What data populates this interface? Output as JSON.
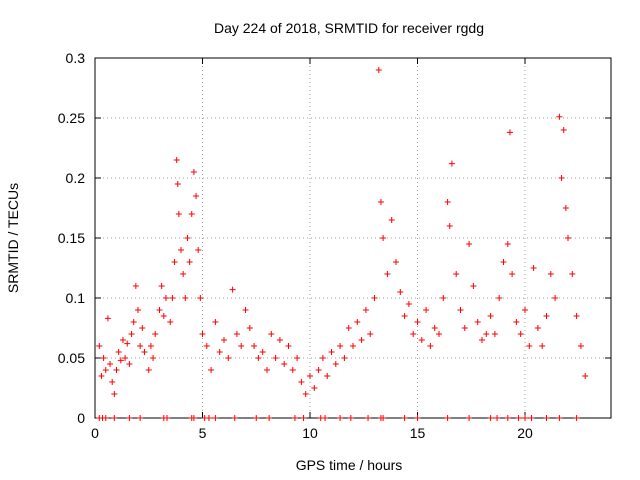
{
  "chart_data": {
    "type": "scatter",
    "title": "Day 224 of 2018, SRMTID for receiver rgdg",
    "xlabel": "GPS time / hours",
    "ylabel": "SRMTID / TECUs",
    "xlim": [
      0,
      24
    ],
    "ylim": [
      0,
      0.3
    ],
    "xticks": [
      0,
      5,
      10,
      15,
      20
    ],
    "yticks": [
      0,
      0.05,
      0.1,
      0.15,
      0.2,
      0.25,
      0.3
    ],
    "xtick_labels": [
      "0",
      "5",
      "10",
      "15",
      "20"
    ],
    "ytick_labels": [
      "0",
      "0.05",
      "0.1",
      "0.15",
      "0.2",
      "0.25",
      "0.3"
    ],
    "grid": true,
    "marker": "+",
    "color": "#ff0000",
    "series": [
      {
        "name": "SRMTID",
        "points": [
          [
            0.2,
            0.06
          ],
          [
            0.3,
            0.035
          ],
          [
            0.4,
            0.05
          ],
          [
            0.5,
            0.04
          ],
          [
            0.6,
            0.083
          ],
          [
            0.7,
            0.045
          ],
          [
            0.8,
            0.03
          ],
          [
            0.9,
            0.02
          ],
          [
            1.0,
            0.04
          ],
          [
            1.1,
            0.055
          ],
          [
            1.2,
            0.048
          ],
          [
            1.3,
            0.065
          ],
          [
            1.4,
            0.05
          ],
          [
            1.5,
            0.062
          ],
          [
            1.6,
            0.045
          ],
          [
            1.7,
            0.07
          ],
          [
            1.8,
            0.08
          ],
          [
            1.9,
            0.11
          ],
          [
            2.0,
            0.09
          ],
          [
            2.1,
            0.06
          ],
          [
            2.2,
            0.075
          ],
          [
            2.3,
            0.055
          ],
          [
            2.5,
            0.04
          ],
          [
            2.6,
            0.06
          ],
          [
            2.7,
            0.05
          ],
          [
            2.8,
            0.07
          ],
          [
            3.0,
            0.09
          ],
          [
            3.1,
            0.11
          ],
          [
            3.2,
            0.085
          ],
          [
            3.3,
            0.1
          ],
          [
            3.5,
            0.08
          ],
          [
            3.6,
            0.1
          ],
          [
            3.7,
            0.13
          ],
          [
            3.8,
            0.215
          ],
          [
            3.85,
            0.195
          ],
          [
            3.9,
            0.17
          ],
          [
            4.0,
            0.14
          ],
          [
            4.1,
            0.12
          ],
          [
            4.2,
            0.1
          ],
          [
            4.3,
            0.15
          ],
          [
            4.4,
            0.13
          ],
          [
            4.5,
            0.17
          ],
          [
            4.6,
            0.205
          ],
          [
            4.7,
            0.185
          ],
          [
            4.8,
            0.14
          ],
          [
            4.9,
            0.1
          ],
          [
            5.0,
            0.07
          ],
          [
            5.2,
            0.06
          ],
          [
            5.4,
            0.04
          ],
          [
            5.6,
            0.08
          ],
          [
            5.8,
            0.055
          ],
          [
            6.0,
            0.065
          ],
          [
            6.2,
            0.05
          ],
          [
            6.4,
            0.107
          ],
          [
            6.6,
            0.07
          ],
          [
            6.8,
            0.06
          ],
          [
            7.0,
            0.09
          ],
          [
            7.2,
            0.075
          ],
          [
            7.4,
            0.06
          ],
          [
            7.6,
            0.05
          ],
          [
            7.8,
            0.055
          ],
          [
            8.0,
            0.04
          ],
          [
            8.2,
            0.07
          ],
          [
            8.4,
            0.05
          ],
          [
            8.6,
            0.065
          ],
          [
            8.8,
            0.045
          ],
          [
            9.0,
            0.06
          ],
          [
            9.2,
            0.04
          ],
          [
            9.4,
            0.05
          ],
          [
            9.6,
            0.03
          ],
          [
            9.8,
            0.02
          ],
          [
            10.0,
            0.035
          ],
          [
            10.2,
            0.025
          ],
          [
            10.4,
            0.04
          ],
          [
            10.6,
            0.05
          ],
          [
            10.8,
            0.035
          ],
          [
            11.0,
            0.055
          ],
          [
            11.2,
            0.045
          ],
          [
            11.4,
            0.06
          ],
          [
            11.6,
            0.05
          ],
          [
            11.8,
            0.075
          ],
          [
            12.0,
            0.06
          ],
          [
            12.2,
            0.08
          ],
          [
            12.4,
            0.065
          ],
          [
            12.6,
            0.09
          ],
          [
            12.8,
            0.07
          ],
          [
            13.0,
            0.1
          ],
          [
            13.2,
            0.29
          ],
          [
            13.3,
            0.18
          ],
          [
            13.4,
            0.15
          ],
          [
            13.6,
            0.12
          ],
          [
            13.8,
            0.165
          ],
          [
            14.0,
            0.13
          ],
          [
            14.2,
            0.105
          ],
          [
            14.4,
            0.085
          ],
          [
            14.6,
            0.095
          ],
          [
            14.8,
            0.07
          ],
          [
            15.0,
            0.08
          ],
          [
            15.2,
            0.065
          ],
          [
            15.4,
            0.09
          ],
          [
            15.6,
            0.06
          ],
          [
            15.8,
            0.075
          ],
          [
            16.0,
            0.07
          ],
          [
            16.2,
            0.1
          ],
          [
            16.4,
            0.18
          ],
          [
            16.5,
            0.16
          ],
          [
            16.6,
            0.212
          ],
          [
            16.8,
            0.12
          ],
          [
            17.0,
            0.09
          ],
          [
            17.2,
            0.075
          ],
          [
            17.4,
            0.145
          ],
          [
            17.6,
            0.11
          ],
          [
            17.8,
            0.08
          ],
          [
            18.0,
            0.065
          ],
          [
            18.2,
            0.07
          ],
          [
            18.4,
            0.085
          ],
          [
            18.6,
            0.07
          ],
          [
            18.8,
            0.1
          ],
          [
            19.0,
            0.13
          ],
          [
            19.2,
            0.145
          ],
          [
            19.3,
            0.238
          ],
          [
            19.4,
            0.12
          ],
          [
            19.6,
            0.08
          ],
          [
            19.8,
            0.07
          ],
          [
            20.0,
            0.09
          ],
          [
            20.2,
            0.06
          ],
          [
            20.4,
            0.125
          ],
          [
            20.6,
            0.075
          ],
          [
            20.8,
            0.06
          ],
          [
            21.0,
            0.085
          ],
          [
            21.2,
            0.12
          ],
          [
            21.4,
            0.1
          ],
          [
            21.6,
            0.251
          ],
          [
            21.7,
            0.2
          ],
          [
            21.8,
            0.24
          ],
          [
            21.9,
            0.175
          ],
          [
            22.0,
            0.15
          ],
          [
            22.2,
            0.12
          ],
          [
            22.4,
            0.085
          ],
          [
            22.6,
            0.06
          ],
          [
            22.8,
            0.035
          ]
        ]
      }
    ],
    "zero_markers": [
      0.2,
      0.35,
      0.5,
      0.9,
      1.6,
      2.1,
      3.2,
      3.35,
      4.5,
      4.6,
      5.1,
      5.3,
      5.6,
      6.5,
      7.5,
      8.1,
      9.3,
      9.7,
      10.5,
      10.7,
      11.4,
      11.9,
      12.7,
      13.3,
      13.4,
      14.4,
      15.0,
      16.4,
      17.4,
      18.4,
      18.7,
      19.2,
      19.7,
      20.0,
      20.3,
      21.0,
      21.6,
      22.4
    ]
  }
}
